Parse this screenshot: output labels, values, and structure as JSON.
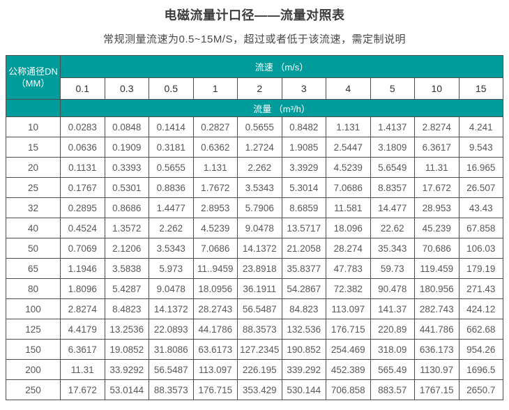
{
  "page": {
    "title": "电磁流量计口径——流量对照表",
    "subtitle": "常规测量流速为0.5~15M/S，超过或者低于该流速，需定制说明"
  },
  "colors": {
    "header_teal": "#009B9B",
    "border": "#4d4d4d",
    "title_text": "#3c3c3c",
    "data_text": "#585858"
  },
  "table": {
    "corner_line1": "公称通径DN",
    "corner_line2": "（MM）",
    "velocity_header": "流速 （m/s）",
    "flow_header": "流量 （m³/h）",
    "velocities": [
      "0.1",
      "0.3",
      "0.5",
      "1",
      "2",
      "3",
      "4",
      "5",
      "10",
      "15"
    ],
    "rows": [
      {
        "dn": "10",
        "values": [
          "0.0283",
          "0.0848",
          "0.1414",
          "0.2827",
          "0.5655",
          "0.8482",
          "1.131",
          "1.4137",
          "2.8274",
          "4.241"
        ]
      },
      {
        "dn": "15",
        "values": [
          "0.0636",
          "0.1909",
          "0.3181",
          "0.6362",
          "1.2724",
          "1.9085",
          "2.5447",
          "3.1809",
          "6.3617",
          "9.543"
        ]
      },
      {
        "dn": "20",
        "values": [
          "0.1131",
          "0.3393",
          "0.5655",
          "1.131",
          "2.262",
          "3.3929",
          "4.5239",
          "5.6549",
          "11.31",
          "16.965"
        ]
      },
      {
        "dn": "25",
        "values": [
          "0.1767",
          "0.5301",
          "0.8836",
          "1.7672",
          "3.5343",
          "5.3014",
          "7.0686",
          "8.8357",
          "17.672",
          "26.507"
        ]
      },
      {
        "dn": "32",
        "values": [
          "0.2895",
          "0.8686",
          "1.4477",
          "2.8953",
          "5.7906",
          "8.6859",
          "11.581",
          "14.477",
          "28.953",
          "43.43"
        ]
      },
      {
        "dn": "40",
        "values": [
          "0.4524",
          "1.3572",
          "2.262",
          "4.5239",
          "9.0478",
          "13.5717",
          "18.096",
          "22.62",
          "45.239",
          "67.858"
        ]
      },
      {
        "dn": "50",
        "values": [
          "0.7069",
          "2.1206",
          "3.5343",
          "7.0686",
          "14.1372",
          "21.2058",
          "28.274",
          "35.343",
          "70.686",
          "106.03"
        ]
      },
      {
        "dn": "65",
        "values": [
          "1.1946",
          "3.5838",
          "5.973",
          "11..9459",
          "23.8918",
          "35.8377",
          "47.783",
          "59.73",
          "119.459",
          "179.19"
        ]
      },
      {
        "dn": "80",
        "values": [
          "1.8096",
          "5.4287",
          "9.0478",
          "18.0956",
          "36.1911",
          "54.2867",
          "72.382",
          "90.478",
          "180.956",
          "271.43"
        ]
      },
      {
        "dn": "100",
        "values": [
          "2.8274",
          "8.4823",
          "14.1372",
          "28.2743",
          "56.5487",
          "84.823",
          "113.097",
          "141.37",
          "282.743",
          "424.12"
        ]
      },
      {
        "dn": "125",
        "values": [
          "4.4179",
          "13.2536",
          "22.0893",
          "44.1786",
          "88.3573",
          "132.536",
          "176.715",
          "220.89",
          "441.786",
          "662.68"
        ]
      },
      {
        "dn": "150",
        "values": [
          "6.3617",
          "19.0852",
          "31.8086",
          "63.6173",
          "127.2345",
          "190.852",
          "254.469",
          "318.09",
          "636.173",
          "954.26"
        ]
      },
      {
        "dn": "200",
        "values": [
          "11.31",
          "33.9292",
          "56.5487",
          "113.097",
          "226.195",
          "339.292",
          "452.389",
          "565.49",
          "1130.97",
          "1696.5"
        ]
      },
      {
        "dn": "250",
        "values": [
          "17.672",
          "53.0144",
          "88.3573",
          "176.715",
          "353.429",
          "530.144",
          "706.858",
          "883.57",
          "1767.15",
          "2650.7"
        ]
      }
    ]
  }
}
